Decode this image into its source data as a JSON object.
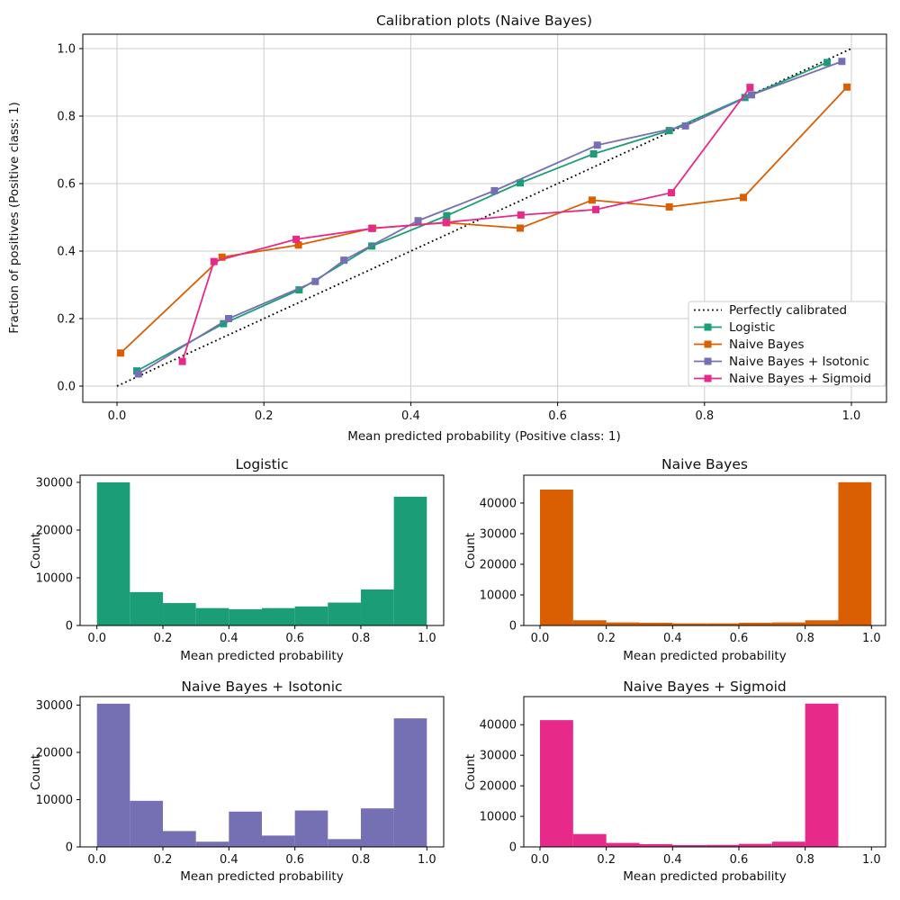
{
  "chart_data": [
    {
      "type": "line",
      "title": "Calibration plots (Naive Bayes)",
      "xlabel": "Mean predicted probability (Positive class: 1)",
      "ylabel": "Fraction of positives (Positive class: 1)",
      "xticks": [
        0.0,
        0.2,
        0.4,
        0.6,
        0.8,
        1.0
      ],
      "yticks": [
        0.0,
        0.2,
        0.4,
        0.6,
        0.8,
        1.0
      ],
      "xlim": [
        -0.05,
        1.05
      ],
      "ylim": [
        -0.05,
        1.05
      ],
      "grid": true,
      "grid_color": "#cccccc",
      "legend_position": "lower right",
      "reference": {
        "label": "Perfectly calibrated",
        "x": [
          0,
          1
        ],
        "y": [
          0,
          1
        ],
        "color": "#000000",
        "style": "dotted"
      },
      "series": [
        {
          "name": "Logistic",
          "color": "#1b9e77",
          "marker": "square",
          "x": [
            0.027,
            0.145,
            0.248,
            0.347,
            0.449,
            0.549,
            0.649,
            0.752,
            0.855,
            0.967
          ],
          "y": [
            0.045,
            0.185,
            0.285,
            0.415,
            0.505,
            0.602,
            0.688,
            0.757,
            0.855,
            0.959
          ]
        },
        {
          "name": "Naive Bayes",
          "color": "#d95f02",
          "marker": "square",
          "x": [
            0.005,
            0.143,
            0.247,
            0.348,
            0.449,
            0.549,
            0.647,
            0.752,
            0.853,
            0.994
          ],
          "y": [
            0.098,
            0.382,
            0.418,
            0.468,
            0.484,
            0.468,
            0.551,
            0.531,
            0.559,
            0.886
          ]
        },
        {
          "name": "Naive Bayes + Isotonic",
          "color": "#7570b3",
          "marker": "square",
          "x": [
            0.029,
            0.152,
            0.27,
            0.309,
            0.41,
            0.514,
            0.654,
            0.774,
            0.864,
            0.987
          ],
          "y": [
            0.036,
            0.2,
            0.31,
            0.373,
            0.49,
            0.579,
            0.714,
            0.771,
            0.863,
            0.962
          ]
        },
        {
          "name": "Naive Bayes + Sigmoid",
          "color": "#e7298a",
          "marker": "square",
          "x": [
            0.089,
            0.132,
            0.244,
            0.347,
            0.448,
            0.55,
            0.652,
            0.755,
            0.862
          ],
          "y": [
            0.073,
            0.369,
            0.435,
            0.467,
            0.485,
            0.507,
            0.523,
            0.573,
            0.885
          ]
        }
      ]
    },
    {
      "type": "bar",
      "title": "Logistic",
      "xlabel": "Mean predicted probability",
      "ylabel": "Count",
      "color": "#1b9e77",
      "bin_edges": [
        0.0,
        0.1,
        0.2,
        0.3,
        0.4,
        0.5,
        0.6,
        0.7,
        0.8,
        0.9,
        1.0
      ],
      "counts": [
        30000,
        7000,
        4700,
        3650,
        3400,
        3650,
        4000,
        4800,
        7550,
        27000
      ],
      "xticks": [
        0.0,
        0.2,
        0.4,
        0.6,
        0.8,
        1.0
      ],
      "yticks": [
        0,
        10000,
        20000,
        30000
      ],
      "ylim_top": 31500,
      "grid": false
    },
    {
      "type": "bar",
      "title": "Naive Bayes",
      "xlabel": "Mean predicted probability",
      "ylabel": "Count",
      "color": "#d95f02",
      "bin_edges": [
        0.0,
        0.1,
        0.2,
        0.3,
        0.4,
        0.5,
        0.6,
        0.7,
        0.8,
        0.9,
        1.0
      ],
      "counts": [
        44400,
        1700,
        1000,
        900,
        700,
        700,
        900,
        1000,
        1700,
        46800
      ],
      "xticks": [
        0.0,
        0.2,
        0.4,
        0.6,
        0.8,
        1.0
      ],
      "yticks": [
        0,
        10000,
        20000,
        30000,
        40000
      ],
      "ylim_top": 49100,
      "grid": false
    },
    {
      "type": "bar",
      "title": "Naive Bayes + Isotonic",
      "xlabel": "Mean predicted probability",
      "ylabel": "Count",
      "color": "#7570b3",
      "bin_edges": [
        0.0,
        0.1,
        0.2,
        0.3,
        0.4,
        0.5,
        0.6,
        0.7,
        0.8,
        0.9,
        1.0
      ],
      "counts": [
        30300,
        9750,
        3350,
        1100,
        7470,
        2400,
        7700,
        1650,
        8150,
        27200
      ],
      "xticks": [
        0.0,
        0.2,
        0.4,
        0.6,
        0.8,
        1.0
      ],
      "yticks": [
        0,
        10000,
        20000,
        30000
      ],
      "ylim_top": 31800,
      "grid": false
    },
    {
      "type": "bar",
      "title": "Naive Bayes + Sigmoid",
      "xlabel": "Mean predicted probability",
      "ylabel": "Count",
      "color": "#e7298a",
      "bin_edges": [
        0.0,
        0.1,
        0.2,
        0.3,
        0.4,
        0.5,
        0.6,
        0.7,
        0.8,
        0.9,
        1.0
      ],
      "counts": [
        41500,
        4200,
        1300,
        900,
        600,
        650,
        1000,
        1700,
        46900,
        0
      ],
      "xticks": [
        0.0,
        0.2,
        0.4,
        0.6,
        0.8,
        1.0
      ],
      "yticks": [
        0,
        10000,
        20000,
        30000,
        40000
      ],
      "ylim_top": 49200,
      "grid": false
    }
  ]
}
